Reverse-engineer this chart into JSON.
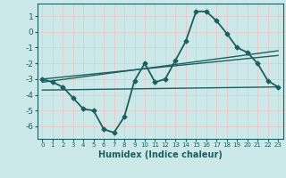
{
  "title": "",
  "xlabel": "Humidex (Indice chaleur)",
  "ylabel": "",
  "background_color": "#cce8e8",
  "grid_color": "#e8c8c8",
  "line_color": "#1a6060",
  "xlim": [
    -0.5,
    23.5
  ],
  "ylim": [
    -6.8,
    1.8
  ],
  "yticks": [
    1,
    0,
    -1,
    -2,
    -3,
    -4,
    -5,
    -6
  ],
  "xticks": [
    0,
    1,
    2,
    3,
    4,
    5,
    6,
    7,
    8,
    9,
    10,
    11,
    12,
    13,
    14,
    15,
    16,
    17,
    18,
    19,
    20,
    21,
    22,
    23
  ],
  "series": [
    {
      "x": [
        0,
        1,
        2,
        3,
        4,
        5,
        6,
        7,
        8,
        9,
        10,
        11,
        12,
        13,
        14,
        15,
        16,
        17,
        18,
        19,
        20,
        21,
        22,
        23
      ],
      "y": [
        -3.0,
        -3.2,
        -3.5,
        -4.2,
        -4.9,
        -5.0,
        -6.2,
        -6.4,
        -5.4,
        -3.1,
        -2.0,
        -3.2,
        -3.0,
        -1.8,
        -0.6,
        1.3,
        1.3,
        0.7,
        -0.1,
        -1.0,
        -1.3,
        -2.0,
        -3.1,
        -3.5
      ],
      "marker": "D",
      "markersize": 2.5,
      "linewidth": 1.3,
      "zorder": 3
    },
    {
      "x": [
        0,
        23
      ],
      "y": [
        -3.2,
        -1.2
      ],
      "marker": null,
      "markersize": 0,
      "linewidth": 1.0,
      "zorder": 2
    },
    {
      "x": [
        0,
        23
      ],
      "y": [
        -3.0,
        -1.5
      ],
      "marker": null,
      "markersize": 0,
      "linewidth": 1.0,
      "zorder": 2
    },
    {
      "x": [
        0,
        23
      ],
      "y": [
        -3.7,
        -3.5
      ],
      "marker": null,
      "markersize": 0,
      "linewidth": 1.0,
      "zorder": 2
    }
  ]
}
